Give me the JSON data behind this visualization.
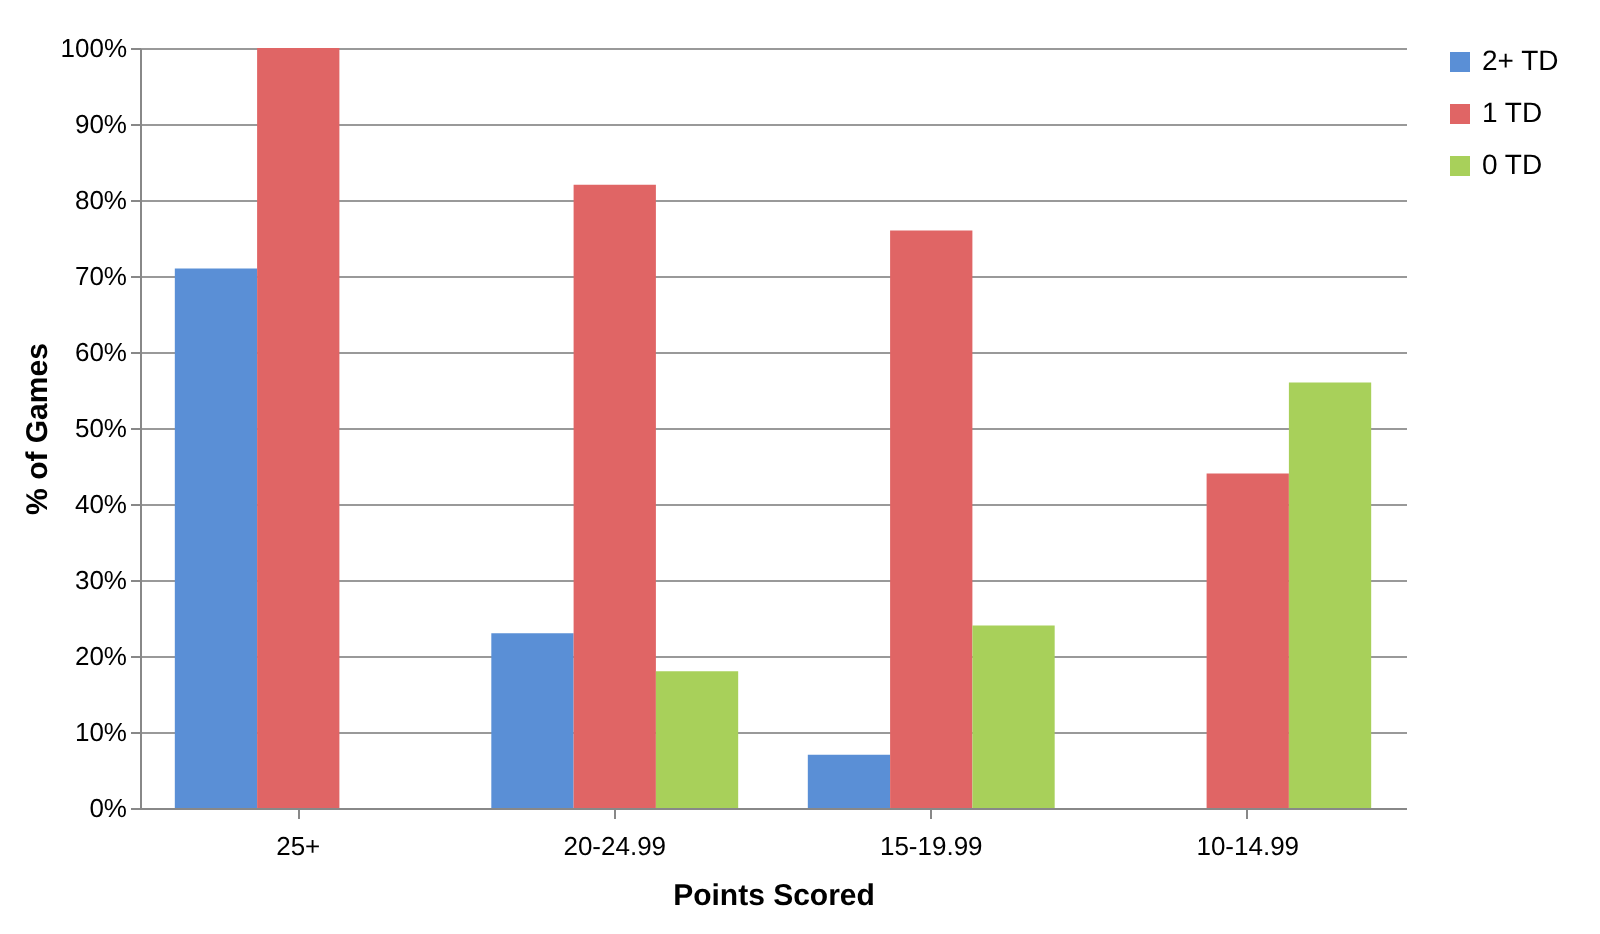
{
  "chart_data": {
    "type": "bar",
    "xlabel": "Points Scored",
    "ylabel": "% of Games",
    "categories": [
      "25+",
      "20-24.99",
      "15-19.99",
      "10-14.99"
    ],
    "series": [
      {
        "name": "2+ TD",
        "color": "#5a8fd6",
        "values": [
          71,
          23,
          7,
          0
        ]
      },
      {
        "name": "1 TD",
        "color": "#e06565",
        "values": [
          100,
          82,
          76,
          44
        ]
      },
      {
        "name": "0 TD",
        "color": "#a8d05a",
        "values": [
          0,
          18,
          24,
          56
        ]
      }
    ],
    "ylim": [
      0,
      100
    ],
    "yticks": [
      {
        "value": 0,
        "label": "0%"
      },
      {
        "value": 10,
        "label": "10%"
      },
      {
        "value": 20,
        "label": "20%"
      },
      {
        "value": 30,
        "label": "30%"
      },
      {
        "value": 40,
        "label": "40%"
      },
      {
        "value": 50,
        "label": "50%"
      },
      {
        "value": 60,
        "label": "60%"
      },
      {
        "value": 70,
        "label": "70%"
      },
      {
        "value": 80,
        "label": "80%"
      },
      {
        "value": 90,
        "label": "90%"
      },
      {
        "value": 100,
        "label": "100%"
      }
    ],
    "grid": "y",
    "legend": "right"
  }
}
